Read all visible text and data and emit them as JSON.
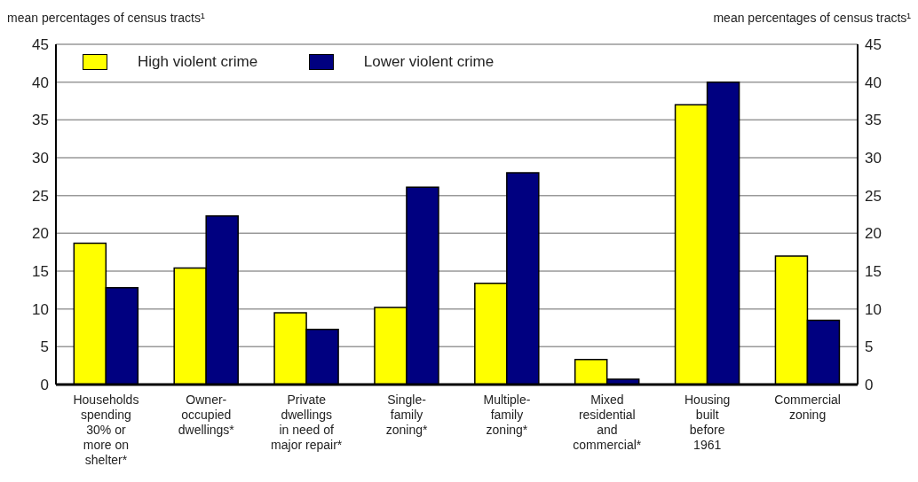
{
  "chart_data": {
    "type": "bar",
    "ylabel": "mean percentages of census tracts¹",
    "y2label": "mean percentages of census tracts¹",
    "categories": [
      "Households\nspending\n30% or\nmore on\nshelter*",
      "Owner-\noccupied\ndwellings*",
      "Private\ndwellings\nin need of\nmajor repair*",
      "Single-\nfamily\nzoning*",
      "Multiple-\nfamily\nzoning*",
      "Mixed\nresidential\nand\ncommercial*",
      "Housing\nbuilt\nbefore\n1961",
      "Commercial\nzoning"
    ],
    "series": [
      {
        "name": "High violent crime",
        "color": "#ffff00",
        "values": [
          18.7,
          15.4,
          9.5,
          10.2,
          13.4,
          3.3,
          37.0,
          17.0
        ]
      },
      {
        "name": "Lower violent crime",
        "color": "#000080",
        "values": [
          12.8,
          22.3,
          7.3,
          26.1,
          28.0,
          0.7,
          40.0,
          8.5
        ]
      }
    ],
    "ylim": [
      0,
      45
    ],
    "yticks": [
      0,
      5,
      10,
      15,
      20,
      25,
      30,
      35,
      40,
      45
    ],
    "y2lim": [
      0,
      45
    ],
    "y2ticks": [
      0,
      5,
      10,
      15,
      20,
      25,
      30,
      35,
      40,
      45
    ],
    "grid": "y",
    "legend": "top left"
  }
}
